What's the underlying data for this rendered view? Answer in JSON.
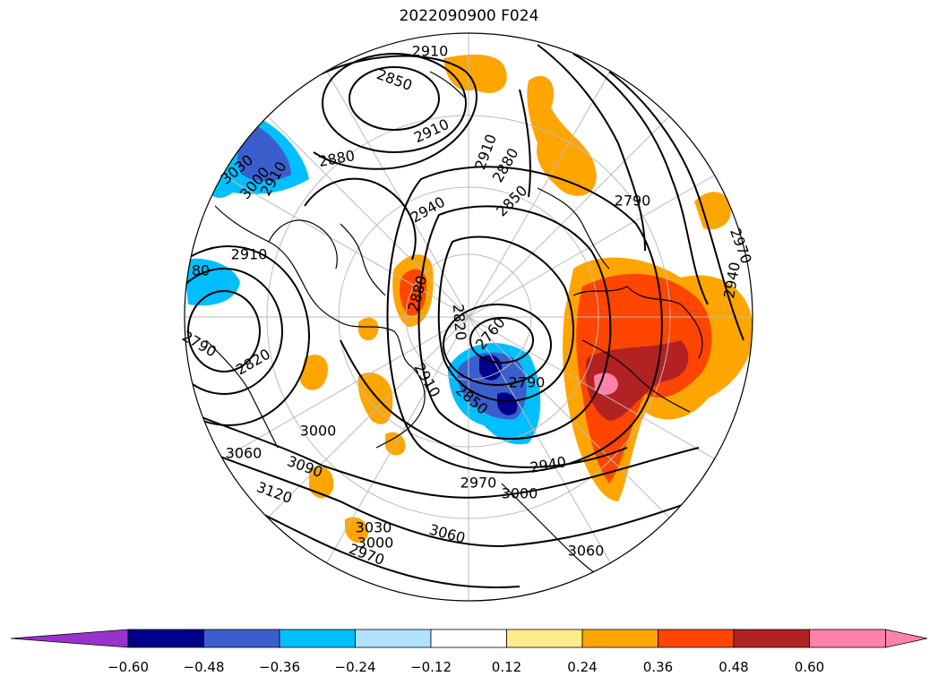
{
  "title": "2022090900 F024",
  "colorbar": {
    "colors": [
      "#9932cc",
      "#00008b",
      "#3a5fcd",
      "#00bfff",
      "#b0e2ff",
      "#ffffff",
      "#ffec8b",
      "#ffa500",
      "#ff4500",
      "#b22222",
      "#ff82ab"
    ],
    "ticks": [
      "−0.60",
      "−0.48",
      "−0.36",
      "−0.24",
      "−0.12",
      "0.12",
      "0.24",
      "0.36",
      "0.48",
      "0.60"
    ]
  },
  "contour_labels": [
    {
      "text": "2910"
    },
    {
      "text": "2850"
    },
    {
      "text": "2910"
    },
    {
      "text": "2880"
    },
    {
      "text": "3030"
    },
    {
      "text": "3000"
    },
    {
      "text": "2910"
    },
    {
      "text": "2910"
    },
    {
      "text": "2880"
    },
    {
      "text": "2850"
    },
    {
      "text": "2940"
    },
    {
      "text": "2790"
    },
    {
      "text": "2970"
    },
    {
      "text": "2940"
    },
    {
      "text": "2880"
    },
    {
      "text": "2820"
    },
    {
      "text": "2760"
    },
    {
      "text": "2850"
    },
    {
      "text": "2790"
    },
    {
      "text": "2910"
    },
    {
      "text": "3000"
    },
    {
      "text": "3060"
    },
    {
      "text": "3090"
    },
    {
      "text": "3120"
    },
    {
      "text": "2970"
    },
    {
      "text": "3000"
    },
    {
      "text": "2940"
    },
    {
      "text": "3030"
    },
    {
      "text": "3000"
    },
    {
      "text": "2970"
    },
    {
      "text": "3060"
    },
    {
      "text": "3060"
    },
    {
      "text": "2790"
    },
    {
      "text": "2820"
    },
    {
      "text": "80"
    },
    {
      "text": "2910"
    }
  ]
}
